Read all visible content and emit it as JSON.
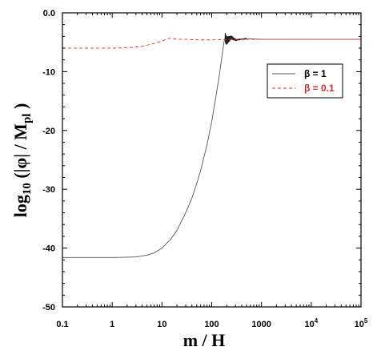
{
  "chart_data": {
    "type": "line",
    "xlabel": "m / H",
    "ylabel": {
      "prefix": "log",
      "sub1": "10",
      "middle": " (|φ| / M",
      "sub2": "pl",
      "suffix": " )"
    },
    "xscale": "log",
    "xlim": [
      0.1,
      100000
    ],
    "ylim": [
      -50,
      0
    ],
    "grid": false,
    "legend_position": "top-right",
    "x_ticks": [
      {
        "value": 0.1,
        "label": "0.1"
      },
      {
        "value": 1,
        "label": "1"
      },
      {
        "value": 10,
        "label": "10"
      },
      {
        "value": 100,
        "label": "100"
      },
      {
        "value": 1000,
        "label": "1000"
      },
      {
        "value": 10000,
        "base": "10",
        "exp": "4"
      },
      {
        "value": 100000,
        "base": "10",
        "exp": "5"
      }
    ],
    "y_ticks": [
      {
        "value": 0,
        "label": "0.0"
      },
      {
        "value": -10,
        "label": "-10"
      },
      {
        "value": -20,
        "label": "-20"
      },
      {
        "value": -30,
        "label": "-30"
      },
      {
        "value": -40,
        "label": "-40"
      },
      {
        "value": -50,
        "label": "-50"
      }
    ],
    "series": [
      {
        "name": "β = 1",
        "color": "#555555",
        "dash": "solid",
        "legend_color": "#000000",
        "x": [
          0.1,
          0.3,
          1,
          2,
          3,
          5,
          7,
          10,
          15,
          20,
          30,
          40,
          50,
          60,
          80,
          100,
          120,
          140,
          160,
          180,
          185,
          200,
          250,
          300,
          500,
          1000,
          10000,
          100000
        ],
        "y": [
          -41.6,
          -41.6,
          -41.6,
          -41.55,
          -41.5,
          -41.2,
          -40.8,
          -40.0,
          -38.5,
          -37.0,
          -34.0,
          -31.5,
          -29.0,
          -26.8,
          -22.5,
          -18.5,
          -14.5,
          -11.0,
          -7.5,
          -4.5,
          -4.3,
          -4.7,
          -4.2,
          -4.6,
          -4.4,
          -4.5,
          -4.5,
          -4.5
        ]
      },
      {
        "name": "β = 0.1",
        "color": "#e8312a",
        "dash": "dashed",
        "legend_color": "#d42a2a",
        "x": [
          0.1,
          0.5,
          1,
          2,
          3,
          4,
          5,
          7,
          10,
          13,
          15,
          20,
          30,
          50,
          100,
          200,
          500,
          1000,
          10000,
          100000
        ],
        "y": [
          -6.0,
          -6.0,
          -6.0,
          -5.95,
          -5.8,
          -5.7,
          -5.5,
          -5.2,
          -4.8,
          -4.4,
          -4.3,
          -4.5,
          -4.5,
          -4.6,
          -4.6,
          -4.5,
          -4.5,
          -4.5,
          -4.5,
          -4.5
        ]
      }
    ]
  }
}
